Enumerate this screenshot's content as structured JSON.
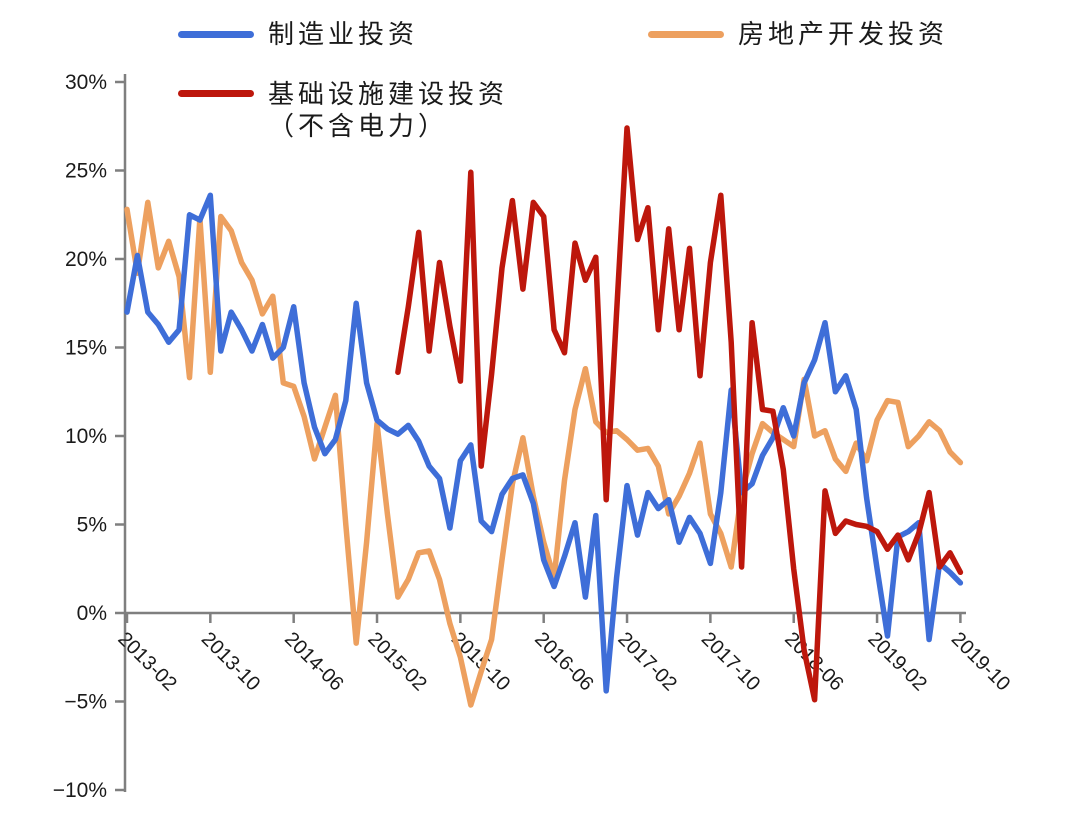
{
  "colors": {
    "manufacturing": "#3e6ed8",
    "real_estate": "#eda05f",
    "infrastructure": "#bd170c",
    "axis": "#7f7f7f",
    "tick_text": "#1a1a1a",
    "background": "#ffffff"
  },
  "legend": {
    "manufacturing": {
      "label": "制造业投资"
    },
    "real_estate": {
      "label": "房地产开发投资"
    },
    "infrastructure": {
      "label": "基础设施建设投资",
      "label_line2": "（不含电力）"
    }
  },
  "chart_data": {
    "type": "line",
    "title": "",
    "xlabel": "",
    "ylabel": "",
    "ylim": [
      -10,
      30
    ],
    "grid": false,
    "zero_line": true,
    "legend_position": "top",
    "yticks": [
      "30%",
      "25%",
      "20%",
      "15%",
      "10%",
      "5%",
      "0%",
      "−5%",
      "−10%"
    ],
    "ytick_values": [
      30,
      25,
      20,
      15,
      10,
      5,
      0,
      -5,
      -10
    ],
    "xticks": [
      "2013-02",
      "2013-10",
      "2014-06",
      "2015-02",
      "2015-10",
      "2016-06",
      "2017-02",
      "2017-10",
      "2018-06",
      "2019-02",
      "2019-10"
    ],
    "xtick_indices": [
      0,
      8,
      16,
      24,
      32,
      40,
      48,
      56,
      64,
      72,
      80
    ],
    "x": [
      "2013-02",
      "2013-03",
      "2013-04",
      "2013-05",
      "2013-06",
      "2013-07",
      "2013-08",
      "2013-09",
      "2013-10",
      "2013-11",
      "2013-12",
      "2014-01",
      "2014-02",
      "2014-03",
      "2014-04",
      "2014-05",
      "2014-06",
      "2014-07",
      "2014-08",
      "2014-09",
      "2014-10",
      "2014-11",
      "2014-12",
      "2015-01",
      "2015-02",
      "2015-03",
      "2015-04",
      "2015-05",
      "2015-06",
      "2015-07",
      "2015-08",
      "2015-09",
      "2015-10",
      "2015-11",
      "2015-12",
      "2016-01",
      "2016-02",
      "2016-03",
      "2016-04",
      "2016-05",
      "2016-06",
      "2016-07",
      "2016-08",
      "2016-09",
      "2016-10",
      "2016-11",
      "2016-12",
      "2017-01",
      "2017-02",
      "2017-03",
      "2017-04",
      "2017-05",
      "2017-06",
      "2017-07",
      "2017-08",
      "2017-09",
      "2017-10",
      "2017-11",
      "2017-12",
      "2018-01",
      "2018-02",
      "2018-03",
      "2018-04",
      "2018-05",
      "2018-06",
      "2018-07",
      "2018-08",
      "2018-09",
      "2018-10",
      "2018-11",
      "2018-12",
      "2019-01",
      "2019-02",
      "2019-03",
      "2019-04",
      "2019-05",
      "2019-06",
      "2019-07",
      "2019-08",
      "2019-09",
      "2019-10"
    ],
    "series": [
      {
        "name": "制造业投资",
        "key": "manufacturing",
        "color": "#3e6ed8",
        "values": [
          17.0,
          20.2,
          17.0,
          16.3,
          15.3,
          16.0,
          22.5,
          22.2,
          23.6,
          14.8,
          17.0,
          16.0,
          14.8,
          16.3,
          14.4,
          15.0,
          17.3,
          13.0,
          10.5,
          9.0,
          9.8,
          12.0,
          17.5,
          13.0,
          10.9,
          10.4,
          10.1,
          10.6,
          9.7,
          8.3,
          7.6,
          4.8,
          8.6,
          9.5,
          5.2,
          4.6,
          6.7,
          7.6,
          7.8,
          6.2,
          3.0,
          1.5,
          3.2,
          5.1,
          0.9,
          5.5,
          -4.4,
          2.0,
          7.2,
          4.4,
          6.8,
          5.9,
          6.4,
          4.0,
          5.4,
          4.5,
          2.8,
          6.8,
          12.6,
          6.8,
          7.3,
          8.9,
          9.9,
          11.6,
          10.0,
          13.0,
          14.3,
          16.4,
          12.5,
          13.4,
          11.5,
          6.5,
          2.5,
          -1.3,
          4.3,
          4.6,
          5.1,
          -1.5,
          2.8,
          2.3,
          1.7
        ]
      },
      {
        "name": "房地产开发投资",
        "key": "real_estate",
        "color": "#eda05f",
        "values": [
          22.8,
          19.2,
          23.2,
          19.5,
          21.0,
          19.0,
          13.3,
          22.3,
          13.6,
          22.4,
          21.6,
          19.8,
          18.8,
          16.9,
          17.9,
          13.0,
          12.8,
          11.1,
          8.7,
          10.5,
          12.3,
          5.0,
          -1.7,
          4.0,
          10.7,
          5.6,
          0.9,
          1.9,
          3.4,
          3.5,
          1.9,
          -0.6,
          -2.5,
          -5.2,
          -3.3,
          -1.5,
          3.0,
          7.3,
          9.9,
          6.6,
          4.0,
          2.0,
          7.5,
          11.5,
          13.8,
          10.8,
          10.2,
          10.3,
          9.8,
          9.2,
          9.3,
          8.3,
          5.6,
          6.6,
          7.9,
          9.6,
          5.6,
          4.5,
          2.6,
          6.8,
          9.0,
          10.7,
          10.2,
          9.8,
          9.4,
          13.2,
          10.0,
          10.3,
          8.7,
          8.0,
          9.6,
          8.6,
          10.9,
          12.0,
          11.9,
          9.4,
          10.0,
          10.8,
          10.3,
          9.1,
          8.5
        ]
      },
      {
        "name": "基础设施建设投资（不含电力）",
        "key": "infrastructure",
        "color": "#bd170c",
        "values": [
          null,
          null,
          null,
          null,
          null,
          null,
          null,
          null,
          null,
          null,
          null,
          null,
          null,
          null,
          null,
          null,
          null,
          null,
          null,
          null,
          null,
          null,
          null,
          null,
          null,
          null,
          13.6,
          17.3,
          21.5,
          14.8,
          19.8,
          16.2,
          13.1,
          24.9,
          8.3,
          13.5,
          19.5,
          23.3,
          18.3,
          23.2,
          22.4,
          16.0,
          14.7,
          20.9,
          18.8,
          20.1,
          6.4,
          17.0,
          27.4,
          21.1,
          22.9,
          16.0,
          21.7,
          16.0,
          20.6,
          13.4,
          19.8,
          23.6,
          15.3,
          2.6,
          16.4,
          11.5,
          11.4,
          8.1,
          2.5,
          -2.1,
          -4.9,
          6.9,
          4.5,
          5.2,
          5.0,
          4.9,
          4.6,
          3.6,
          4.4,
          3.0,
          4.5,
          6.8,
          2.6,
          3.4,
          2.3
        ]
      }
    ]
  }
}
